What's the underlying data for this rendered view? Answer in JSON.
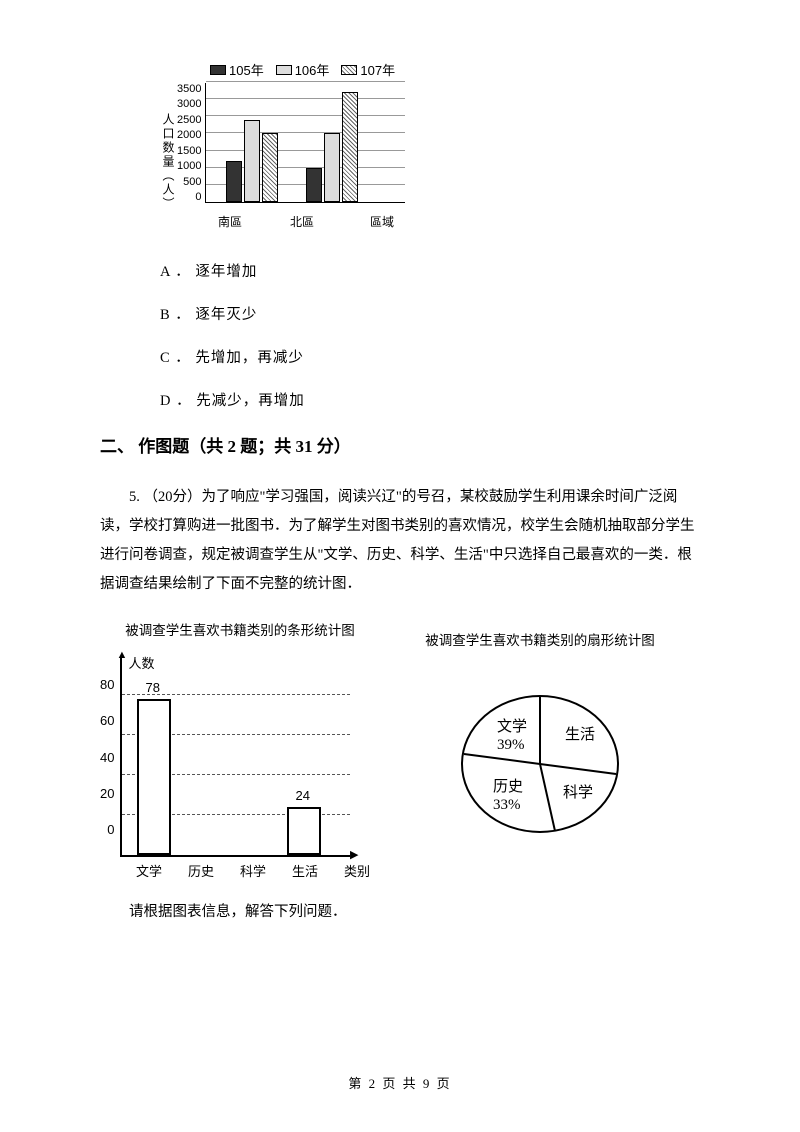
{
  "chart1": {
    "legend": [
      {
        "label": "105年",
        "fill": "#333333"
      },
      {
        "label": "106年",
        "fill": "#dddddd"
      },
      {
        "label": "107年",
        "fill": "hatch"
      }
    ],
    "ylabel": "人口数量（人）",
    "yticks": [
      "3500",
      "3000",
      "2500",
      "2000",
      "1500",
      "1000",
      "500",
      "0"
    ],
    "ymax": 3500,
    "groups": [
      {
        "label": "南區",
        "values": [
          1200,
          2400,
          2000
        ]
      },
      {
        "label": "北區",
        "values": [
          1000,
          2000,
          3200
        ]
      }
    ],
    "xaxis_label": "區域"
  },
  "options": {
    "A": "A ． 逐年增加",
    "B": "B ． 逐年灭少",
    "C": "C ． 先增加，再减少",
    "D": "D ． 先减少，再增加"
  },
  "section": "二、 作图题（共 2 题；共 31 分）",
  "q5": "5.    （20分）为了响应\"学习强国，阅读兴辽\"的号召，某校鼓励学生利用课余时间广泛阅读，学校打算购进一批图书．为了解学生对图书类别的喜欢情况，校学生会随机抽取部分学生进行问卷调查，规定被调查学生从\"文学、历史、科学、生活\"中只选择自己最喜欢的一类．根据调查结果绘制了下面不完整的统计图．",
  "chart2_bar": {
    "title": "被调查学生喜欢书籍类别的条形统计图",
    "ylabel": "人数",
    "yticks": [
      "80",
      "60",
      "40",
      "20",
      "0"
    ],
    "ymax": 100,
    "bars": [
      {
        "label": "文学",
        "value": 78,
        "show_label": "78"
      },
      {
        "label": "历史",
        "value": null
      },
      {
        "label": "科学",
        "value": null
      },
      {
        "label": "生活",
        "value": 24,
        "show_label": "24"
      }
    ],
    "xaxis_label": "类别"
  },
  "chart2_pie": {
    "title": "被调查学生喜欢书籍类别的扇形统计图",
    "slices": [
      {
        "label": "文学",
        "pct": "39%"
      },
      {
        "label": "生活",
        "pct": ""
      },
      {
        "label": "科学",
        "pct": ""
      },
      {
        "label": "历史",
        "pct": "33%"
      }
    ]
  },
  "closing": "请根据图表信息，解答下列问题．",
  "footer": "第 2 页 共 9 页"
}
